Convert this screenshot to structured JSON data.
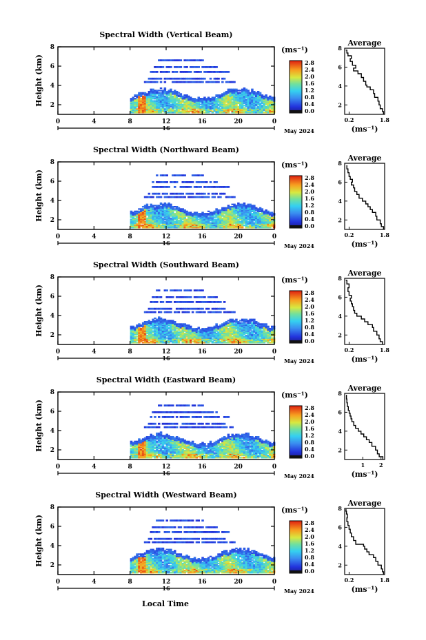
{
  "figure": {
    "xlabel": "Local Time",
    "ylabel": "Height (km)",
    "date_label": "May 2024",
    "day_label": "16",
    "unit_label": "(ms⁻¹)",
    "avg_title": "Average"
  },
  "chart_data": [
    {
      "type": "heatmap",
      "title": "Spectral Width (Vertical Beam)",
      "xlabel": "Local Time",
      "ylabel": "Height (km)",
      "x_ticks": [
        "0",
        "4",
        "8",
        "12",
        "16",
        "20",
        "0"
      ],
      "y_ticks": [
        "2",
        "4",
        "6",
        "8"
      ],
      "xlim": [
        0,
        24
      ],
      "ylim": [
        1,
        8
      ],
      "colorbar": {
        "ticks": [
          "2.8",
          "2.4",
          "2.0",
          "1.6",
          "1.2",
          "0.8",
          "0.4",
          "0.0"
        ],
        "range": [
          0,
          2.8
        ]
      }
    },
    {
      "type": "heatmap",
      "title": "Spectral Width (Northward Beam)",
      "xlabel": "Local Time",
      "ylabel": "Height (km)",
      "x_ticks": [
        "0",
        "4",
        "8",
        "12",
        "16",
        "20",
        "0"
      ],
      "y_ticks": [
        "2",
        "4",
        "6",
        "8"
      ],
      "xlim": [
        0,
        24
      ],
      "ylim": [
        1,
        8
      ],
      "colorbar": {
        "ticks": [
          "2.8",
          "2.4",
          "2.0",
          "1.6",
          "1.2",
          "0.8",
          "0.4",
          "0.0"
        ],
        "range": [
          0,
          2.8
        ]
      }
    },
    {
      "type": "heatmap",
      "title": "Spectral Width (Southward Beam)",
      "xlabel": "Local Time",
      "ylabel": "Height (km)",
      "x_ticks": [
        "0",
        "4",
        "8",
        "12",
        "16",
        "20",
        "0"
      ],
      "y_ticks": [
        "2",
        "4",
        "6",
        "8"
      ],
      "xlim": [
        0,
        24
      ],
      "ylim": [
        1,
        8
      ],
      "colorbar": {
        "ticks": [
          "2.8",
          "2.4",
          "2.0",
          "1.6",
          "1.2",
          "0.8",
          "0.4",
          "0.0"
        ],
        "range": [
          0,
          2.8
        ]
      }
    },
    {
      "type": "heatmap",
      "title": "Spectral Width (Eastward Beam)",
      "xlabel": "Local Time",
      "ylabel": "Height (km)",
      "x_ticks": [
        "0",
        "4",
        "8",
        "12",
        "16",
        "20",
        "0"
      ],
      "y_ticks": [
        "2",
        "4",
        "6",
        "8"
      ],
      "xlim": [
        0,
        24
      ],
      "ylim": [
        1,
        8
      ],
      "colorbar": {
        "ticks": [
          "2.8",
          "2.4",
          "2.0",
          "1.6",
          "1.2",
          "0.8",
          "0.4",
          "0.0"
        ],
        "range": [
          0,
          2.8
        ]
      }
    },
    {
      "type": "heatmap",
      "title": "Spectral Width (Westward Beam)",
      "xlabel": "Local Time",
      "ylabel": "Height (km)",
      "x_ticks": [
        "0",
        "4",
        "8",
        "12",
        "16",
        "20",
        "0"
      ],
      "y_ticks": [
        "2",
        "4",
        "6",
        "8"
      ],
      "xlim": [
        0,
        24
      ],
      "ylim": [
        1,
        8
      ],
      "colorbar": {
        "ticks": [
          "2.8",
          "2.4",
          "2.0",
          "1.6",
          "1.2",
          "0.8",
          "0.4",
          "0.0"
        ],
        "range": [
          0,
          2.8
        ]
      }
    },
    {
      "type": "line",
      "title": "Average",
      "xlabel": "(ms⁻¹)",
      "ylim": [
        1,
        8
      ],
      "xlim": [
        0,
        1.8
      ],
      "x_ticks": [
        "0.2",
        "1.8"
      ],
      "y_ticks": [
        "2",
        "4",
        "6",
        "8"
      ],
      "x": [
        1.75,
        1.7,
        1.6,
        1.55,
        1.5,
        1.35,
        1.3,
        1.15,
        1.0,
        0.95,
        0.85,
        0.75,
        0.6,
        0.4,
        0.5,
        0.35,
        0.25,
        0.3,
        0.15,
        0.1,
        0.05
      ],
      "y": [
        1.0,
        1.3,
        1.6,
        2.0,
        2.4,
        2.8,
        3.2,
        3.6,
        3.9,
        4.1,
        4.5,
        4.9,
        5.3,
        5.6,
        5.9,
        6.2,
        6.6,
        6.9,
        7.2,
        7.5,
        7.8
      ]
    },
    {
      "type": "line",
      "title": "Average",
      "xlabel": "(ms⁻¹)",
      "ylim": [
        1,
        8
      ],
      "xlim": [
        0,
        1.8
      ],
      "x_ticks": [
        "0.2",
        "1.8"
      ],
      "y_ticks": [
        "2",
        "4",
        "6",
        "8"
      ],
      "x": [
        1.75,
        1.65,
        1.6,
        1.45,
        1.4,
        1.25,
        1.15,
        1.05,
        0.95,
        0.8,
        0.65,
        0.55,
        0.45,
        0.4,
        0.3,
        0.35,
        0.25,
        0.2,
        0.15,
        0.1,
        0.1
      ],
      "y": [
        1.0,
        1.3,
        1.6,
        2.0,
        2.4,
        2.8,
        3.1,
        3.4,
        3.7,
        4.0,
        4.3,
        4.7,
        5.0,
        5.4,
        5.7,
        6.0,
        6.3,
        6.6,
        7.0,
        7.4,
        7.8
      ]
    },
    {
      "type": "line",
      "title": "Average",
      "xlabel": "(ms⁻¹)",
      "ylim": [
        1,
        8
      ],
      "xlim": [
        0,
        1.8
      ],
      "x_ticks": [
        "0.2",
        "1.8"
      ],
      "y_ticks": [
        "2",
        "4",
        "6",
        "8"
      ],
      "x": [
        1.7,
        1.6,
        1.55,
        1.45,
        1.3,
        1.25,
        1.05,
        0.9,
        0.75,
        0.55,
        0.45,
        0.4,
        0.35,
        0.3,
        0.25,
        0.3,
        0.2,
        0.15,
        0.2,
        0.1,
        0.05
      ],
      "y": [
        1.0,
        1.3,
        1.6,
        2.0,
        2.4,
        2.8,
        3.1,
        3.4,
        3.7,
        4.0,
        4.3,
        4.6,
        5.0,
        5.3,
        5.6,
        5.9,
        6.2,
        6.6,
        7.0,
        7.4,
        7.8
      ]
    },
    {
      "type": "line",
      "title": "Average",
      "xlabel": "(ms⁻¹)",
      "ylim": [
        1,
        8
      ],
      "xlim": [
        0,
        2.2
      ],
      "x_ticks": [
        "1",
        "2"
      ],
      "y_ticks": [
        "2",
        "4",
        "6",
        "8"
      ],
      "x": [
        2.1,
        1.9,
        1.8,
        1.7,
        1.5,
        1.35,
        1.2,
        1.05,
        0.9,
        0.75,
        0.6,
        0.5,
        0.4,
        0.35,
        0.3,
        0.25,
        0.2,
        0.15,
        0.12,
        0.1,
        0.08
      ],
      "y": [
        1.0,
        1.3,
        1.6,
        2.0,
        2.4,
        2.8,
        3.1,
        3.4,
        3.7,
        4.0,
        4.3,
        4.6,
        5.0,
        5.3,
        5.6,
        5.9,
        6.2,
        6.6,
        7.0,
        7.4,
        7.8
      ]
    },
    {
      "type": "line",
      "title": "Average",
      "xlabel": "(ms⁻¹)",
      "ylim": [
        1,
        8
      ],
      "xlim": [
        0,
        1.8
      ],
      "x_ticks": [
        "0.2",
        "1.8"
      ],
      "y_ticks": [
        "2",
        "4",
        "6",
        "8"
      ],
      "x": [
        1.75,
        1.7,
        1.65,
        1.5,
        1.4,
        1.3,
        1.1,
        1.0,
        0.9,
        0.85,
        0.5,
        0.4,
        0.3,
        0.25,
        0.2,
        0.15,
        0.1,
        0.12,
        0.08,
        0.06,
        0.05
      ],
      "y": [
        1.0,
        1.3,
        1.6,
        2.0,
        2.4,
        2.8,
        3.1,
        3.4,
        3.7,
        4.0,
        4.2,
        4.6,
        5.0,
        5.4,
        5.8,
        6.2,
        6.6,
        7.0,
        7.4,
        7.7,
        7.9
      ]
    }
  ]
}
